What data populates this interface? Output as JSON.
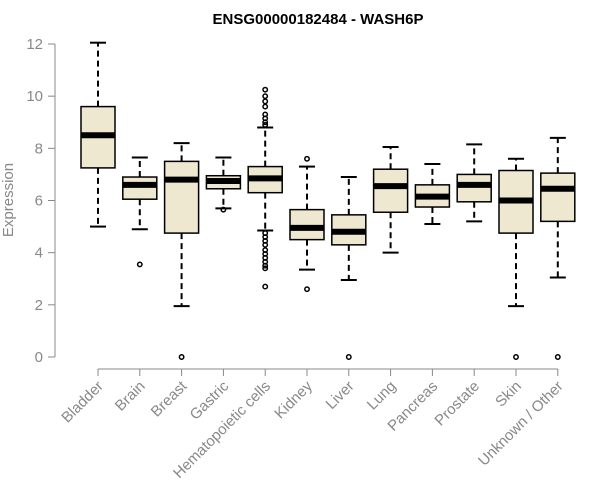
{
  "chart_data": {
    "type": "boxplot",
    "title": "ENSG00000182484 - WASH6P",
    "xlabel": "",
    "ylabel": "Expression",
    "ylim": [
      0,
      12
    ],
    "yticks": [
      0,
      2,
      4,
      6,
      8,
      10,
      12
    ],
    "box_fill": "#efe8d0",
    "categories": [
      "Bladder",
      "Brain",
      "Breast",
      "Gastric",
      "Hematopoietic cells",
      "Kidney",
      "Liver",
      "Lung",
      "Pancreas",
      "Prostate",
      "Skin",
      "Unknown / Other"
    ],
    "boxes": [
      {
        "min": 5.0,
        "q1": 7.25,
        "median": 8.5,
        "q3": 9.6,
        "max": 12.05,
        "outliers": []
      },
      {
        "min": 4.9,
        "q1": 6.05,
        "median": 6.6,
        "q3": 6.9,
        "max": 7.65,
        "outliers": [
          3.55
        ]
      },
      {
        "min": 1.95,
        "q1": 4.75,
        "median": 6.8,
        "q3": 7.5,
        "max": 8.2,
        "outliers": [
          0.0
        ]
      },
      {
        "min": 5.7,
        "q1": 6.45,
        "median": 6.75,
        "q3": 6.95,
        "max": 7.65,
        "outliers": [
          5.65
        ]
      },
      {
        "min": 4.85,
        "q1": 6.3,
        "median": 6.85,
        "q3": 7.3,
        "max": 8.8,
        "outliers": [
          10.25,
          10.0,
          9.8,
          9.6,
          9.3,
          9.15,
          9.0,
          8.9,
          4.75,
          4.6,
          4.45,
          4.3,
          4.1,
          3.95,
          3.8,
          3.65,
          3.5,
          3.4,
          2.7
        ]
      },
      {
        "min": 3.35,
        "q1": 4.5,
        "median": 4.95,
        "q3": 5.65,
        "max": 7.3,
        "outliers": [
          7.6,
          2.6
        ]
      },
      {
        "min": 2.95,
        "q1": 4.3,
        "median": 4.8,
        "q3": 5.45,
        "max": 6.9,
        "outliers": [
          0.0
        ]
      },
      {
        "min": 4.0,
        "q1": 5.55,
        "median": 6.55,
        "q3": 7.2,
        "max": 8.05,
        "outliers": []
      },
      {
        "min": 5.1,
        "q1": 5.75,
        "median": 6.15,
        "q3": 6.6,
        "max": 7.4,
        "outliers": []
      },
      {
        "min": 5.2,
        "q1": 5.95,
        "median": 6.6,
        "q3": 7.0,
        "max": 8.15,
        "outliers": []
      },
      {
        "min": 1.95,
        "q1": 4.75,
        "median": 6.0,
        "q3": 7.15,
        "max": 7.6,
        "outliers": [
          0.0
        ]
      },
      {
        "min": 3.05,
        "q1": 5.2,
        "median": 6.45,
        "q3": 7.05,
        "max": 8.4,
        "outliers": [
          0.0
        ]
      }
    ]
  }
}
